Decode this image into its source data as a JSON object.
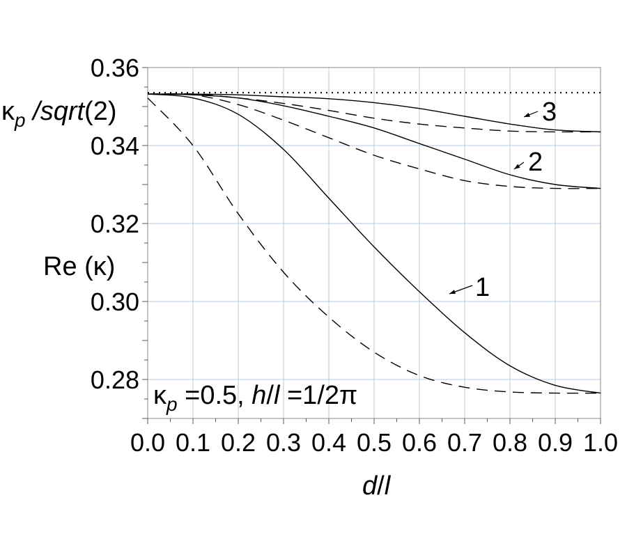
{
  "chart_data": {
    "type": "line",
    "xlabel": "d/l",
    "ylabel": "Re (κ)",
    "reference_label": "κp /sqrt(2)",
    "reference_value": 0.35355,
    "annotation": "κp =0.5, h/l =1/2π",
    "xlim": [
      0,
      1
    ],
    "ylim": [
      0.27,
      0.36
    ],
    "x_ticks": [
      "0.0",
      "0.1",
      "0.2",
      "0.3",
      "0.4",
      "0.5",
      "0.6",
      "0.7",
      "0.8",
      "0.9",
      "1.0"
    ],
    "y_ticks": [
      "0.28",
      "0.30",
      "0.32",
      "0.34",
      "0.36"
    ],
    "grid": true,
    "x": [
      0,
      0.1,
      0.2,
      0.3,
      0.4,
      0.5,
      0.6,
      0.7,
      0.8,
      0.9,
      1.0
    ],
    "series": [
      {
        "label": "1",
        "style": "solid",
        "values": [
          0.3532,
          0.3522,
          0.348,
          0.339,
          0.3265,
          0.314,
          0.3025,
          0.292,
          0.2835,
          0.2785,
          0.2765
        ]
      },
      {
        "label": "1",
        "style": "dashed",
        "values": [
          0.3522,
          0.34,
          0.3225,
          0.3075,
          0.296,
          0.287,
          0.281,
          0.278,
          0.2768,
          0.2765,
          0.2765
        ]
      },
      {
        "label": "2",
        "style": "solid",
        "values": [
          0.3532,
          0.353,
          0.3522,
          0.3502,
          0.3475,
          0.3445,
          0.3405,
          0.3365,
          0.3325,
          0.33,
          0.329
        ]
      },
      {
        "label": "2",
        "style": "dashed",
        "values": [
          0.3532,
          0.353,
          0.3505,
          0.3465,
          0.342,
          0.3375,
          0.334,
          0.331,
          0.3295,
          0.329,
          0.329
        ]
      },
      {
        "label": "3",
        "style": "solid",
        "values": [
          0.3532,
          0.3532,
          0.353,
          0.3525,
          0.352,
          0.351,
          0.3495,
          0.3475,
          0.3455,
          0.344,
          0.3435
        ]
      },
      {
        "label": "3",
        "style": "dashed",
        "values": [
          0.3532,
          0.3532,
          0.3522,
          0.3508,
          0.349,
          0.347,
          0.3455,
          0.3445,
          0.3437,
          0.3435,
          0.3435
        ]
      }
    ]
  }
}
